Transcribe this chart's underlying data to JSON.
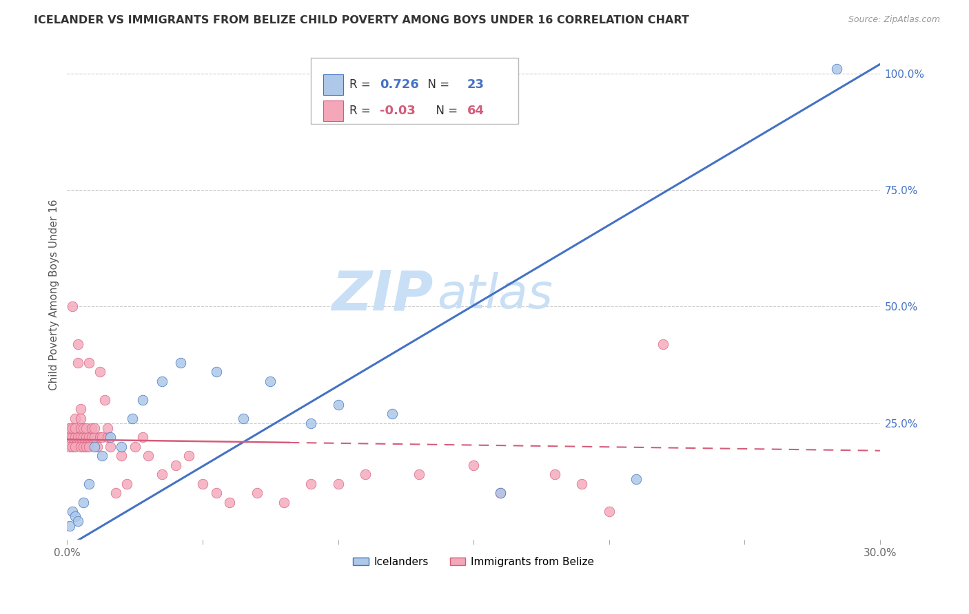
{
  "title": "ICELANDER VS IMMIGRANTS FROM BELIZE CHILD POVERTY AMONG BOYS UNDER 16 CORRELATION CHART",
  "source": "Source: ZipAtlas.com",
  "ylabel": "Child Poverty Among Boys Under 16",
  "xlim": [
    0.0,
    0.3
  ],
  "ylim": [
    0.0,
    1.05
  ],
  "xticks": [
    0.0,
    0.05,
    0.1,
    0.15,
    0.2,
    0.25,
    0.3
  ],
  "yticks_right": [
    0.0,
    0.25,
    0.5,
    0.75,
    1.0
  ],
  "yticklabels_right": [
    "",
    "25.0%",
    "50.0%",
    "75.0%",
    "100.0%"
  ],
  "blue_R": 0.726,
  "blue_N": 23,
  "pink_R": -0.03,
  "pink_N": 64,
  "blue_color": "#adc8e8",
  "blue_line_color": "#4472c4",
  "pink_color": "#f4a7b9",
  "pink_line_color": "#d45c7a",
  "blue_line_slope": 3.45,
  "blue_line_intercept": -0.015,
  "pink_line_slope": -0.08,
  "pink_line_intercept": 0.215,
  "blue_scatter_x": [
    0.001,
    0.002,
    0.003,
    0.004,
    0.006,
    0.008,
    0.01,
    0.013,
    0.016,
    0.02,
    0.024,
    0.028,
    0.035,
    0.042,
    0.055,
    0.065,
    0.075,
    0.09,
    0.1,
    0.12,
    0.16,
    0.21,
    0.284
  ],
  "blue_scatter_y": [
    0.03,
    0.06,
    0.05,
    0.04,
    0.08,
    0.12,
    0.2,
    0.18,
    0.22,
    0.2,
    0.26,
    0.3,
    0.34,
    0.38,
    0.36,
    0.26,
    0.34,
    0.25,
    0.29,
    0.27,
    0.1,
    0.13,
    1.01
  ],
  "pink_scatter_x": [
    0.001,
    0.001,
    0.001,
    0.002,
    0.002,
    0.002,
    0.002,
    0.003,
    0.003,
    0.003,
    0.003,
    0.004,
    0.004,
    0.004,
    0.005,
    0.005,
    0.005,
    0.005,
    0.005,
    0.006,
    0.006,
    0.006,
    0.007,
    0.007,
    0.007,
    0.008,
    0.008,
    0.008,
    0.009,
    0.009,
    0.01,
    0.01,
    0.011,
    0.012,
    0.012,
    0.013,
    0.014,
    0.015,
    0.015,
    0.016,
    0.018,
    0.02,
    0.022,
    0.025,
    0.028,
    0.03,
    0.035,
    0.04,
    0.045,
    0.05,
    0.055,
    0.06,
    0.07,
    0.08,
    0.09,
    0.1,
    0.11,
    0.13,
    0.15,
    0.18,
    0.2,
    0.22,
    0.16,
    0.19
  ],
  "pink_scatter_y": [
    0.2,
    0.22,
    0.24,
    0.2,
    0.22,
    0.24,
    0.5,
    0.2,
    0.22,
    0.24,
    0.26,
    0.22,
    0.38,
    0.42,
    0.2,
    0.22,
    0.24,
    0.26,
    0.28,
    0.2,
    0.22,
    0.24,
    0.2,
    0.22,
    0.24,
    0.2,
    0.22,
    0.38,
    0.22,
    0.24,
    0.22,
    0.24,
    0.2,
    0.22,
    0.36,
    0.22,
    0.3,
    0.22,
    0.24,
    0.2,
    0.1,
    0.18,
    0.12,
    0.2,
    0.22,
    0.18,
    0.14,
    0.16,
    0.18,
    0.12,
    0.1,
    0.08,
    0.1,
    0.08,
    0.12,
    0.12,
    0.14,
    0.14,
    0.16,
    0.14,
    0.06,
    0.42,
    0.1,
    0.12
  ],
  "legend_blue_label": "Icelanders",
  "legend_pink_label": "Immigrants from Belize",
  "background_color": "#ffffff",
  "grid_color": "#cccccc",
  "watermark_zip_color": "#c8dff5",
  "watermark_atlas_color": "#c8dff5"
}
